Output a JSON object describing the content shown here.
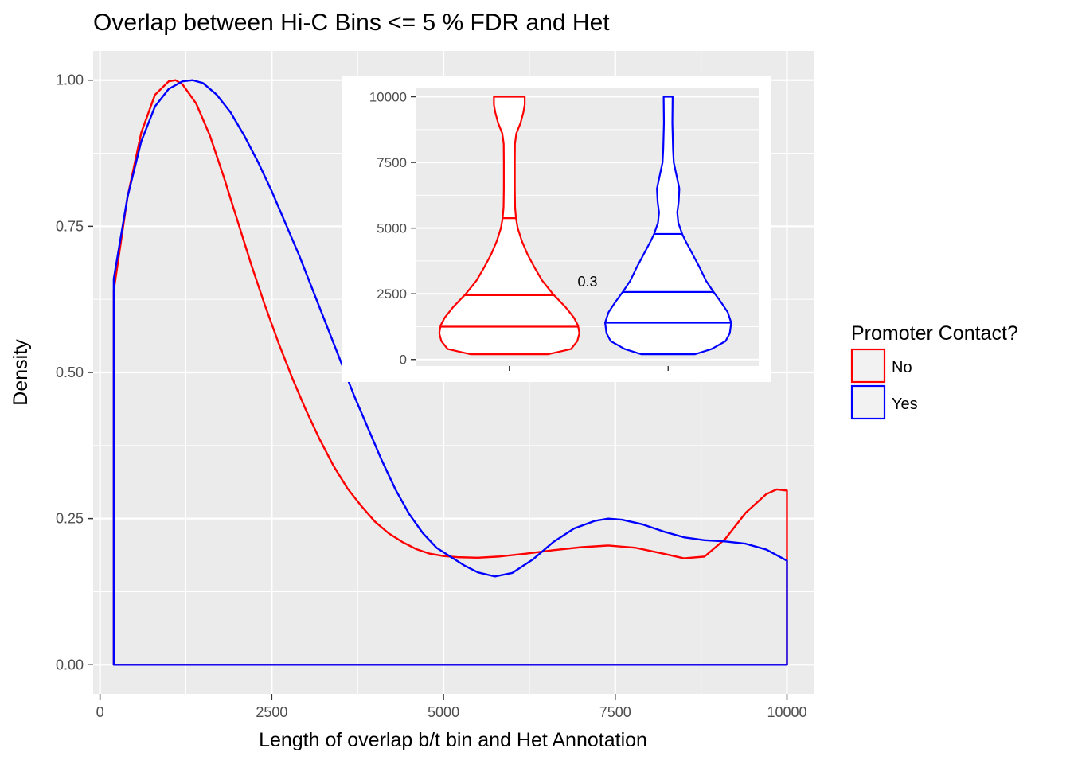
{
  "chart_data": [
    {
      "type": "line",
      "title": "Overlap between Hi-C Bins <= 5 % FDR and Het",
      "xlabel": "Length of overlap b/t bin and Het Annotation",
      "ylabel": "Density",
      "xlim": [
        -100,
        10400
      ],
      "ylim": [
        -0.05,
        1.05
      ],
      "xticks": [
        "0",
        "2500",
        "5000",
        "7500",
        "10000"
      ],
      "xtick_values": [
        0,
        2500,
        5000,
        7500,
        10000
      ],
      "yticks": [
        "0.00",
        "0.25",
        "0.50",
        "0.75",
        "1.00"
      ],
      "ytick_values": [
        0,
        0.25,
        0.5,
        0.75,
        1.0
      ],
      "grid": true,
      "legend": {
        "title": "Promoter Contact?",
        "position": "right",
        "entries": [
          "No",
          "Yes"
        ]
      },
      "series": [
        {
          "name": "No",
          "color": "#ff0000",
          "x": [
            200,
            400,
            600,
            800,
            1000,
            1100,
            1200,
            1400,
            1600,
            1800,
            2000,
            2200,
            2400,
            2600,
            2800,
            3000,
            3200,
            3400,
            3600,
            3800,
            4000,
            4200,
            4400,
            4600,
            4800,
            5000,
            5200,
            5500,
            5800,
            6200,
            6600,
            7000,
            7400,
            7800,
            8200,
            8500,
            8800,
            9100,
            9400,
            9700,
            9850,
            10000
          ],
          "values": [
            0.64,
            0.8,
            0.91,
            0.975,
            0.998,
            1.0,
            0.993,
            0.96,
            0.905,
            0.835,
            0.76,
            0.685,
            0.615,
            0.55,
            0.49,
            0.435,
            0.385,
            0.34,
            0.302,
            0.272,
            0.245,
            0.225,
            0.21,
            0.198,
            0.19,
            0.186,
            0.184,
            0.183,
            0.185,
            0.19,
            0.196,
            0.201,
            0.204,
            0.2,
            0.19,
            0.182,
            0.185,
            0.215,
            0.26,
            0.292,
            0.3,
            0.298
          ]
        },
        {
          "name": "Yes",
          "color": "#0000ff",
          "x": [
            200,
            400,
            600,
            800,
            1000,
            1200,
            1350,
            1500,
            1700,
            1900,
            2100,
            2300,
            2500,
            2700,
            2900,
            3100,
            3300,
            3500,
            3700,
            3900,
            4100,
            4300,
            4500,
            4700,
            4900,
            5100,
            5300,
            5500,
            5750,
            6000,
            6300,
            6600,
            6900,
            7200,
            7400,
            7600,
            7900,
            8200,
            8500,
            8800,
            9100,
            9400,
            9700,
            10000
          ],
          "values": [
            0.66,
            0.8,
            0.895,
            0.955,
            0.985,
            0.998,
            1.0,
            0.995,
            0.975,
            0.945,
            0.905,
            0.86,
            0.81,
            0.755,
            0.7,
            0.64,
            0.58,
            0.52,
            0.46,
            0.405,
            0.35,
            0.3,
            0.258,
            0.225,
            0.2,
            0.185,
            0.17,
            0.158,
            0.151,
            0.157,
            0.18,
            0.21,
            0.233,
            0.246,
            0.25,
            0.248,
            0.24,
            0.228,
            0.218,
            0.213,
            0.211,
            0.207,
            0.197,
            0.178
          ]
        }
      ]
    },
    {
      "type": "violin",
      "inset": true,
      "categories": [
        "No",
        "Yes"
      ],
      "ylim": [
        -250,
        10350
      ],
      "yticks": [
        "0",
        "2500",
        "5000",
        "7500",
        "10000"
      ],
      "ytick_values": [
        0,
        2500,
        5000,
        7500,
        10000
      ],
      "annotation": "0.3",
      "series": [
        {
          "name": "No",
          "color": "#ff0000",
          "quantiles": [
            1250,
            2450,
            5380
          ],
          "profile_y": [
            200,
            400,
            700,
            1000,
            1300,
            1600,
            2000,
            2500,
            3000,
            3500,
            4000,
            4500,
            5000,
            5380,
            5800,
            6500,
            7500,
            8200,
            8600,
            9000,
            9400,
            9700,
            10000
          ],
          "profile_w": [
            0.55,
            0.88,
            0.97,
            1.0,
            0.98,
            0.92,
            0.8,
            0.62,
            0.47,
            0.36,
            0.26,
            0.18,
            0.12,
            0.095,
            0.082,
            0.078,
            0.078,
            0.08,
            0.1,
            0.16,
            0.2,
            0.22,
            0.22
          ]
        },
        {
          "name": "Yes",
          "color": "#0000ff",
          "quantiles": [
            1400,
            2570,
            4780
          ],
          "profile_y": [
            200,
            400,
            700,
            1000,
            1400,
            1800,
            2200,
            2600,
            3000,
            3500,
            4000,
            4500,
            4780,
            5200,
            5600,
            6000,
            6500,
            7000,
            7500,
            8000,
            8500,
            9000,
            9500,
            10000
          ],
          "profile_w": [
            0.38,
            0.62,
            0.82,
            0.88,
            0.9,
            0.85,
            0.75,
            0.64,
            0.54,
            0.45,
            0.35,
            0.25,
            0.2,
            0.145,
            0.13,
            0.15,
            0.16,
            0.12,
            0.08,
            0.07,
            0.065,
            0.06,
            0.062,
            0.064
          ]
        }
      ]
    }
  ]
}
